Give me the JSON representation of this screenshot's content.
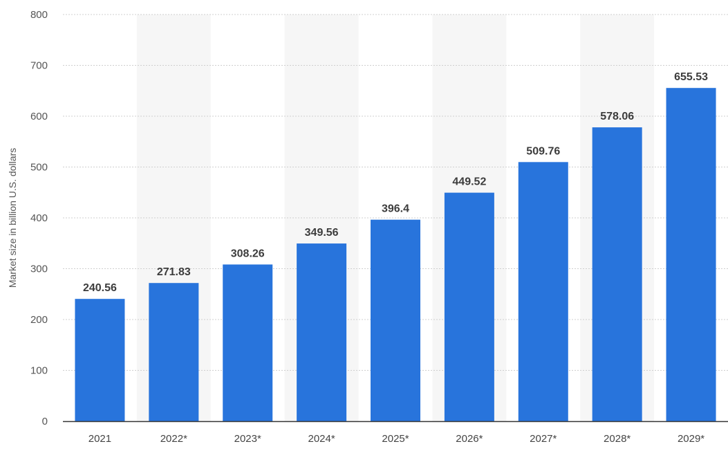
{
  "chart_data": {
    "type": "bar",
    "title": "",
    "xlabel": "",
    "ylabel": "Market size in billion U.S. dollars",
    "categories": [
      "2021",
      "2022*",
      "2023*",
      "2024*",
      "2025*",
      "2026*",
      "2027*",
      "2028*",
      "2029*"
    ],
    "values": [
      240.56,
      271.83,
      308.26,
      349.56,
      396.4,
      449.52,
      509.76,
      578.06,
      655.53
    ],
    "value_labels": [
      "240.56",
      "271.83",
      "308.26",
      "349.56",
      "396.4",
      "449.52",
      "509.76",
      "578.06",
      "655.53"
    ],
    "ylim": [
      0,
      800
    ],
    "yticks": [
      0,
      100,
      200,
      300,
      400,
      500,
      600,
      700,
      800
    ],
    "grid": true,
    "legend": "none",
    "colors": {
      "bar": "#2874dc",
      "band": "#f6f6f6",
      "grid": "#cfcfcf",
      "axis": "#333333"
    }
  }
}
